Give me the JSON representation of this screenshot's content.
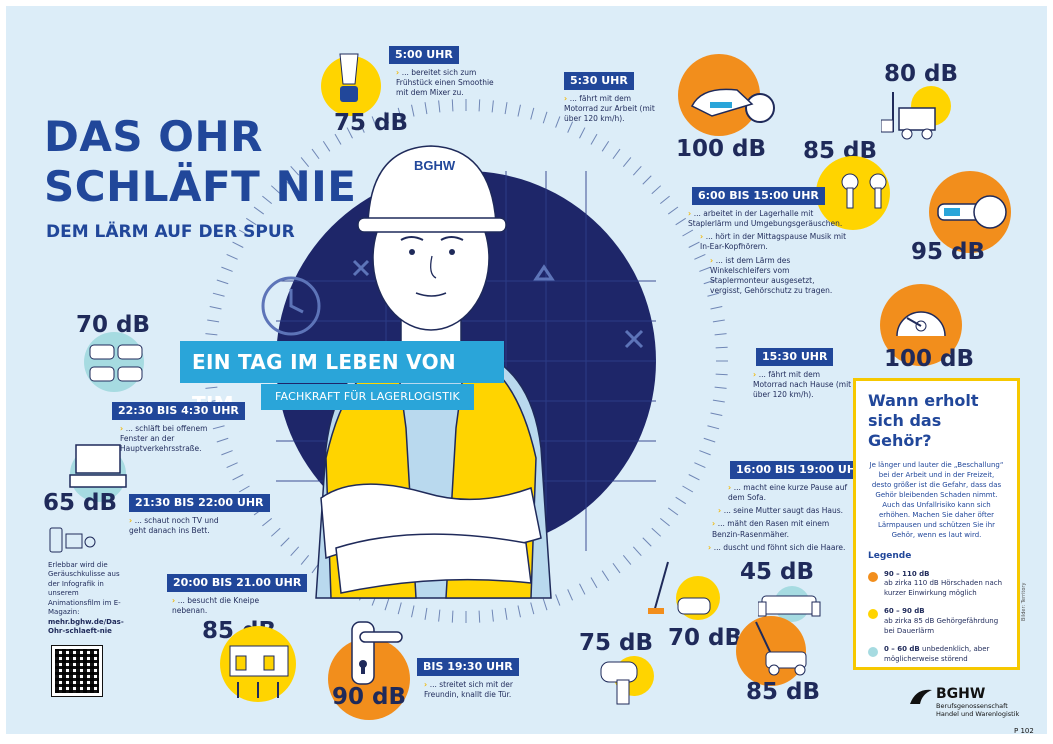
{
  "title": {
    "line1": "DAS OHR",
    "line2": "SCHLÄFT NIE",
    "subtitle": "DEM LÄRM AUF DER SPUR"
  },
  "banner": {
    "main": "EIN TAG IM LEBEN  VON TIM",
    "sub": "FACHKRAFT FÜR LAGERLOGISTIK"
  },
  "helmet_logo": "BGHW",
  "events": [
    {
      "time": "5:00 UHR",
      "text": [
        "... bereitet sich zum Frühstück einen Smoothie mit dem Mixer zu."
      ],
      "db": "75 dB",
      "icon": "blender-icon"
    },
    {
      "time": "5:30 UHR",
      "text": [
        "... fährt mit dem Motorrad zur Arbeit (mit über 120 km/h)."
      ],
      "db": "100 dB",
      "icon": "motorcycle-icon"
    },
    {
      "time": "6:00 BIS 15:00 UHR",
      "text": [
        "... arbeitet in der Lagerhalle mit Staplerlärm und Umgebungsgeräuschen.",
        "... hört in der Mittagspause Musik mit In-Ear-Kopfhörern.",
        "... ist dem Lärm des Winkelschleifers vom Staplermonteur ausgesetzt, vergisst, Gehörschutz zu tragen."
      ],
      "db": [
        "80 dB",
        "85 dB",
        "95 dB"
      ],
      "icon": [
        "forklift-icon",
        "earbuds-icon",
        "angle-grinder-icon"
      ]
    },
    {
      "time": "15:30 UHR",
      "text": [
        "... fährt mit dem Motorrad nach Hause (mit über 120 km/h)."
      ],
      "db": "100 dB",
      "icon": "speedometer-icon"
    },
    {
      "time": "16:00 BIS 19:00 UHR",
      "text": [
        "... macht eine kurze Pause auf dem Sofa.",
        "... seine Mutter saugt das Haus.",
        "... mäht den Rasen mit einem Benzin-Rasenmäher.",
        "... duscht und föhnt sich die Haare."
      ],
      "db": [
        "45 dB",
        "70 dB",
        "85 dB",
        "75 dB"
      ],
      "icon": [
        "sofa-icon",
        "vacuum-icon",
        "lawnmower-icon",
        "hairdryer-icon"
      ]
    },
    {
      "time": "BIS 19:30 UHR",
      "text": [
        "... streitet sich mit der Freundin, knallt die Tür."
      ],
      "db": "90 dB",
      "icon": "door-handle-icon"
    },
    {
      "time": "20:00 BIS 21.00 UHR",
      "text": [
        "... besucht die Kneipe nebenan."
      ],
      "db": "85 dB",
      "icon": "pub-icon"
    },
    {
      "time": "21:30 BIS 22:00 UHR",
      "text": [
        "... schaut noch TV und geht danach ins Bett."
      ],
      "db": "65 dB",
      "icon": "tv-icon"
    },
    {
      "time": "22:30 BIS 4:30 UHR",
      "text": [
        "... schläft bei offenem Fenster an der Hauptverkehrsstraße."
      ],
      "db": "70 dB",
      "icon": "traffic-icon"
    }
  ],
  "infobox": {
    "title": "Wann erholt sich das Gehör?",
    "body": "Je länger und lauter die „Beschallung“ bei der Arbeit und in der Freizeit, desto größer ist die Gefahr, dass das Gehör bleibenden Schaden nimmt. Auch das Unfallrisiko kann sich erhöhen. Machen Sie daher öfter Lärmpausen und schützen Sie ihr Gehör, wenn es laut wird.",
    "legend_title": "Legende",
    "legend": [
      {
        "range": "90 – 110 dB",
        "desc": "ab zirka 110 dB Hörschaden nach kurzer Einwirkung möglich",
        "color": "#f28e1c"
      },
      {
        "range": "60 – 90 dB",
        "desc": "ab zirka 85 dB Gehörgefährdung bei Dauerlärm",
        "color": "#ffd400"
      },
      {
        "range": "0 – 60 dB",
        "desc": "unbedenklich, aber möglicherweise störend",
        "color": "#a6dbe1"
      }
    ]
  },
  "side_note": "Erlebbar wird die Geräuschkulisse aus der Infografik in unserem Animationsfilm im E-Magazin:",
  "side_link": "mehr.bghw.de/Das-Ohr-schlaeft-nie",
  "logo": {
    "name": "BGHW",
    "sub1": "Berufsgenossenschaft",
    "sub2": "Handel und Warenlogistik"
  },
  "page_number": "P 102",
  "credit": "Bilder: Territory",
  "colors": {
    "navy": "#21479a",
    "light_bg": "#dcedf8",
    "yellow": "#ffd400",
    "orange": "#f28e1c",
    "teal": "#a6dbe1",
    "banner": "#2aa5d9"
  }
}
